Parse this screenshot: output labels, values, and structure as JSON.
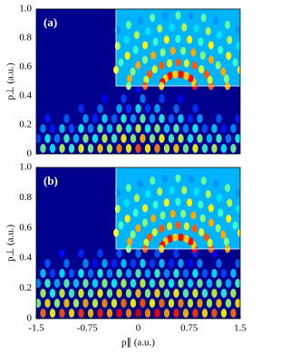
{
  "chart_data": [
    {
      "type": "heatmap",
      "panel_label": "(a)",
      "ylabel": "p⊥ (a.u.)",
      "xlim": [
        -1.5,
        1.5
      ],
      "ylim": [
        0,
        1
      ],
      "yticks": [
        0,
        0.2,
        0.4,
        0.6,
        0.8,
        {
          "value": 1,
          "label": "1.0"
        }
      ]
    },
    {
      "type": "heatmap",
      "panel_label": "(b)",
      "ylabel": "p⊥ (a.u.)",
      "xlabel": "p∥ (a.u.)",
      "xlim": [
        -1.5,
        1.5
      ],
      "ylim": [
        0,
        1
      ],
      "xticks": [
        -1.5,
        -0.75,
        0,
        0.75,
        1.5
      ],
      "yticks": [
        0,
        0.2,
        0.4,
        0.6,
        0.8,
        {
          "value": 1,
          "label": "1.0"
        }
      ]
    }
  ]
}
